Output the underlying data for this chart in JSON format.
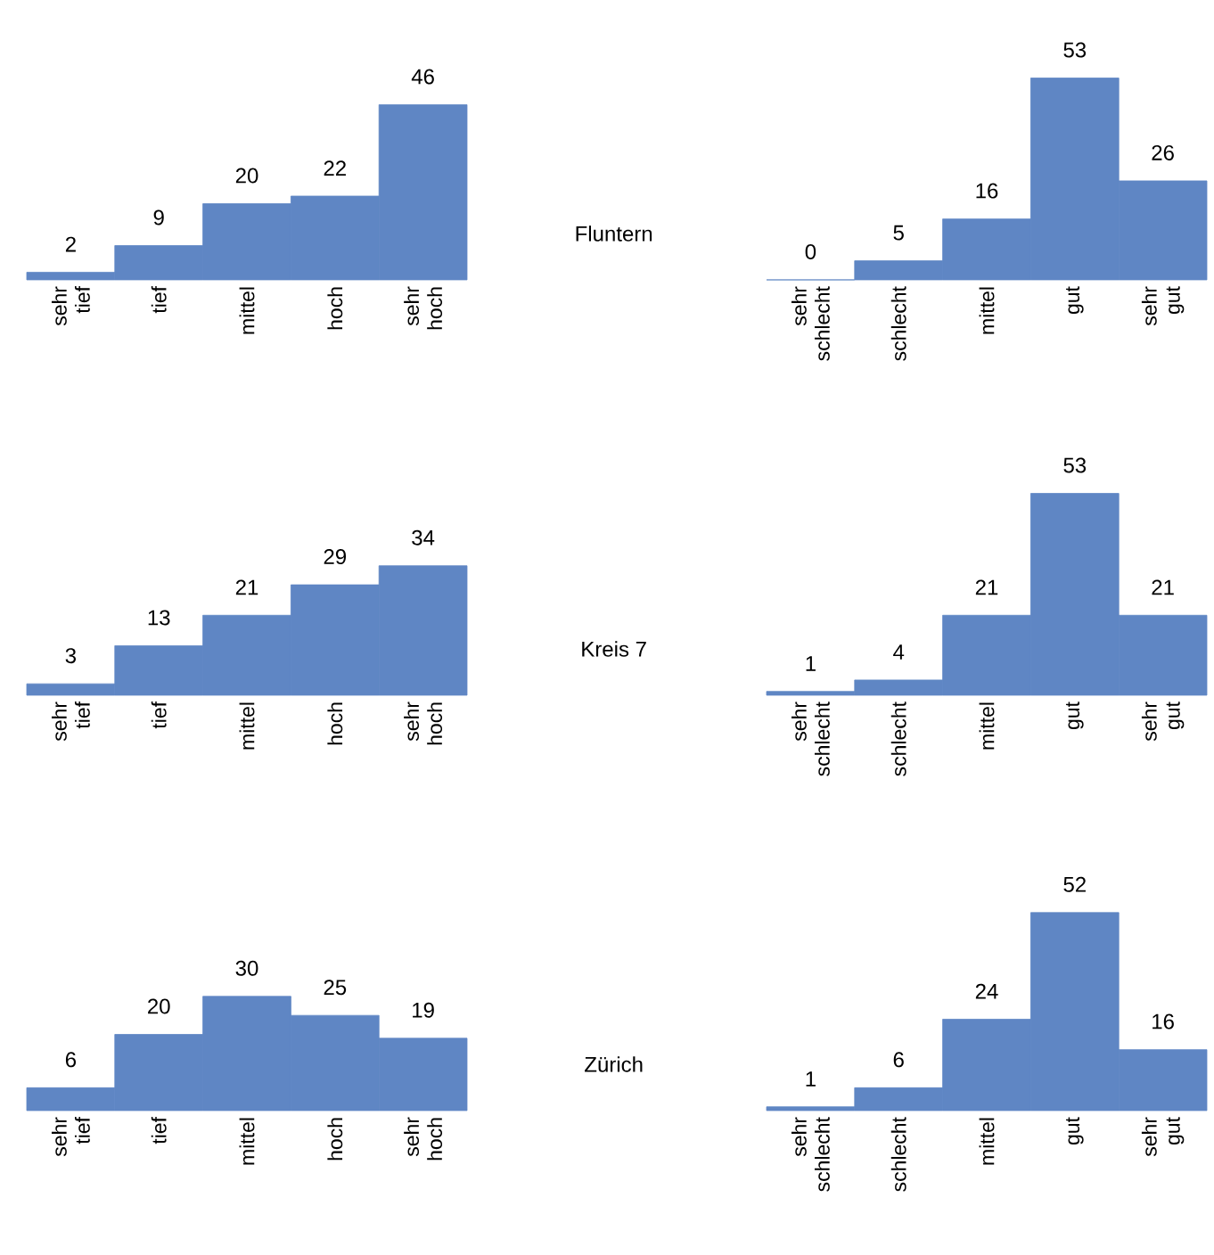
{
  "chart_data": [
    {
      "type": "bar",
      "categories": [
        "sehr tief",
        "tief",
        "mittel",
        "hoch",
        "sehr hoch"
      ],
      "values": [
        2,
        9,
        20,
        22,
        46
      ],
      "color": "#5f86c4",
      "data_labels": true
    },
    {
      "type": "bar",
      "categories": [
        "sehr schlecht",
        "schlecht",
        "mittel",
        "gut",
        "sehr gut"
      ],
      "values": [
        0,
        5,
        16,
        53,
        26
      ],
      "color": "#5f86c4",
      "data_labels": true
    },
    {
      "type": "bar",
      "categories": [
        "sehr tief",
        "tief",
        "mittel",
        "hoch",
        "sehr hoch"
      ],
      "values": [
        3,
        13,
        21,
        29,
        34
      ],
      "color": "#5f86c4",
      "data_labels": true
    },
    {
      "type": "bar",
      "categories": [
        "sehr schlecht",
        "schlecht",
        "mittel",
        "gut",
        "sehr gut"
      ],
      "values": [
        1,
        4,
        21,
        53,
        21
      ],
      "color": "#5f86c4",
      "data_labels": true
    },
    {
      "type": "bar",
      "categories": [
        "sehr tief",
        "tief",
        "mittel",
        "hoch",
        "sehr hoch"
      ],
      "values": [
        6,
        20,
        30,
        25,
        19
      ],
      "color": "#5f86c4",
      "data_labels": true
    },
    {
      "type": "bar",
      "categories": [
        "sehr schlecht",
        "schlecht",
        "mittel",
        "gut",
        "sehr gut"
      ],
      "values": [
        1,
        6,
        24,
        52,
        16
      ],
      "color": "#5f86c4",
      "data_labels": true
    },
    {
      "type": "other",
      "annotations": [
        "Fluntern",
        "Kreis 7",
        "Zürich"
      ]
    }
  ]
}
